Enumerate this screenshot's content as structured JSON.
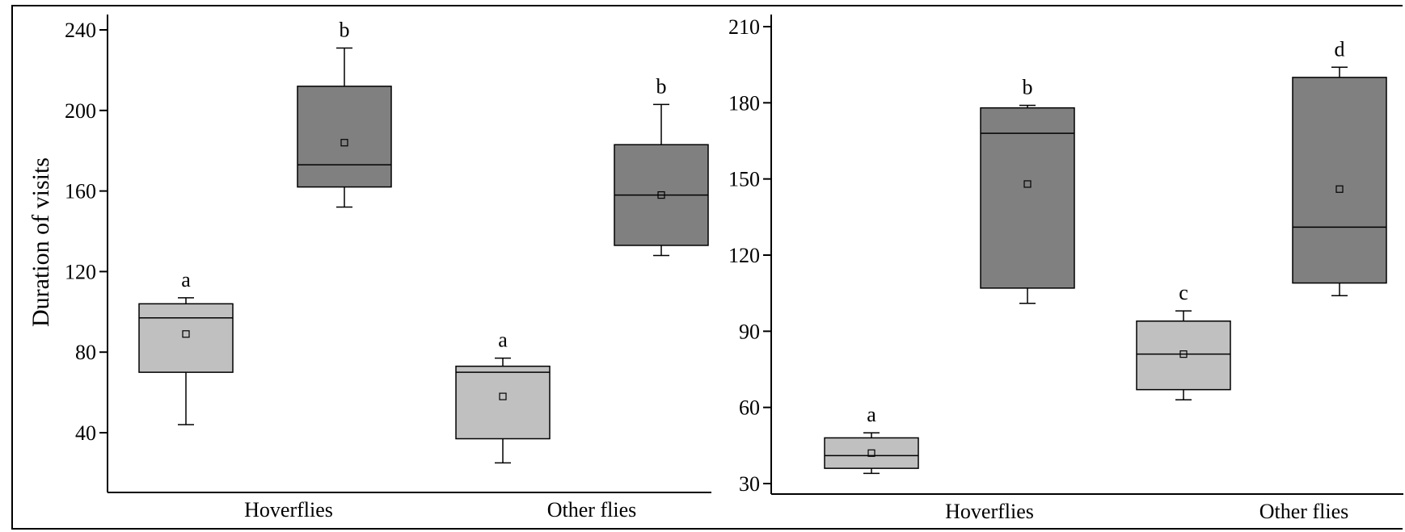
{
  "colors": {
    "light_box": "#c0c0c0",
    "dark_box": "#808080",
    "line": "#000000"
  },
  "chart_data": [
    {
      "type": "box",
      "ylabel": "Duration of visits",
      "ylim": [
        0,
        245
      ],
      "yticks": [
        40,
        80,
        120,
        160,
        200,
        240
      ],
      "categories": [
        "Hoverflies",
        "Other flies"
      ],
      "boxes": [
        {
          "category": "Hoverflies",
          "shade": "light",
          "whisker_low": 44,
          "q1": 70,
          "median": 97,
          "mean": 89,
          "q3": 104,
          "whisker_high": 107,
          "letter": "a"
        },
        {
          "category": "Hoverflies",
          "shade": "dark",
          "whisker_low": 152,
          "q1": 162,
          "median": 173,
          "mean": 184,
          "q3": 212,
          "whisker_high": 231,
          "letter": "b"
        },
        {
          "category": "Other flies",
          "shade": "light",
          "whisker_low": 25,
          "q1": 37,
          "median": 70,
          "mean": 58,
          "q3": 73,
          "whisker_high": 77,
          "letter": "a"
        },
        {
          "category": "Other flies",
          "shade": "dark",
          "whisker_low": 128,
          "q1": 133,
          "median": 158,
          "mean": 158,
          "q3": 183,
          "whisker_high": 203,
          "letter": "b"
        }
      ]
    },
    {
      "type": "box",
      "ylabel": "",
      "ylim": [
        26,
        210
      ],
      "yticks": [
        30,
        60,
        90,
        120,
        150,
        180,
        210
      ],
      "categories": [
        "Hoverflies",
        "Other flies"
      ],
      "boxes": [
        {
          "category": "Hoverflies",
          "shade": "light",
          "whisker_low": 34,
          "q1": 36,
          "median": 41,
          "mean": 42,
          "q3": 48,
          "whisker_high": 50,
          "letter": "a"
        },
        {
          "category": "Hoverflies",
          "shade": "dark",
          "whisker_low": 101,
          "q1": 107,
          "median": 168,
          "mean": 148,
          "q3": 178,
          "whisker_high": 179,
          "letter": "b"
        },
        {
          "category": "Other flies",
          "shade": "light",
          "whisker_low": 63,
          "q1": 67,
          "median": 81,
          "mean": 81,
          "q3": 94,
          "whisker_high": 98,
          "letter": "c"
        },
        {
          "category": "Other flies",
          "shade": "dark",
          "whisker_low": 104,
          "q1": 109,
          "median": 131,
          "mean": 146,
          "q3": 190,
          "whisker_high": 194,
          "letter": "d"
        }
      ]
    }
  ]
}
